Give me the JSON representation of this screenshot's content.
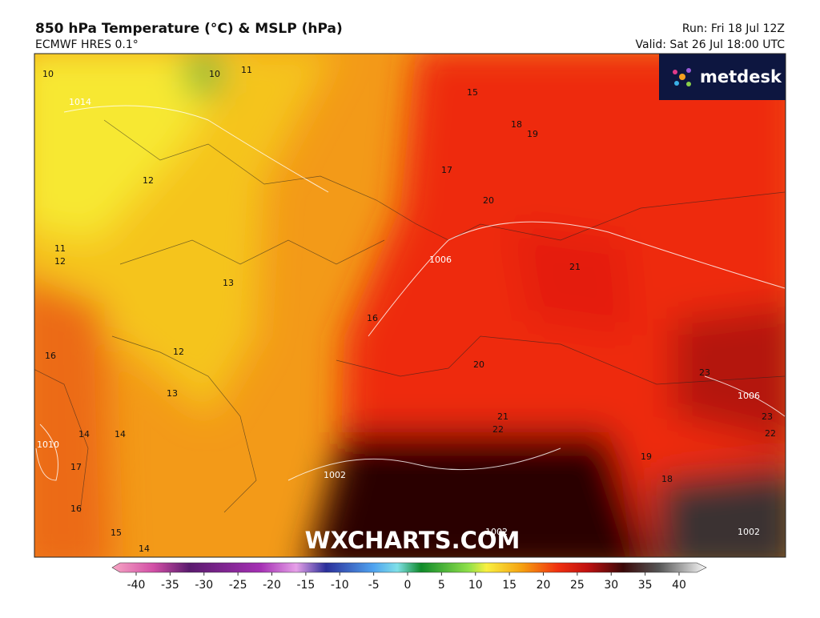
{
  "header": {
    "title": "850 hPa Temperature (°C) & MSLP (hPa)",
    "subtitle": "ECMWF HRES 0.1°",
    "run": "Run: Fri 18 Jul 12Z",
    "valid": "Valid: Sat 26 Jul 18:00 UTC"
  },
  "logo": "metdesk",
  "watermark": "WXCHARTS.COM",
  "map": {
    "temperature_labels": [
      10,
      10,
      11,
      12,
      11,
      12,
      13,
      12,
      13,
      14,
      14,
      16,
      16,
      17,
      16,
      15,
      14,
      15,
      18,
      19,
      17,
      20,
      21,
      20,
      21,
      22,
      23,
      23,
      22,
      19,
      18
    ],
    "pressure_labels": [
      1014,
      1006,
      1002,
      1006,
      1010,
      1002,
      1002
    ]
  },
  "colorbar": {
    "ticks": [
      -40,
      -35,
      -30,
      -25,
      -20,
      -15,
      -10,
      -5,
      0,
      5,
      10,
      15,
      20,
      25,
      30,
      35,
      40
    ]
  }
}
